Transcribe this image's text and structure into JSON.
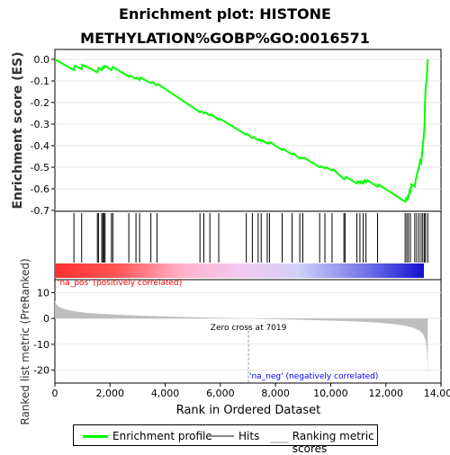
{
  "title": "Enrichment plot: HISTONE METHYLATION%GOBP%GO:0016571",
  "colors": {
    "enrichment": "#00ff00",
    "hits": "#000000",
    "ranking": "#bebebe",
    "pos_label": "#ff0000",
    "neg_label": "#0000ff"
  },
  "chart_data": [
    {
      "type": "line",
      "panel": "enrichment-score",
      "ylabel": "Enrichment score (ES)",
      "xlim": [
        0,
        14000
      ],
      "ylim": [
        -0.7,
        0.0
      ],
      "yticks": [
        0.0,
        -0.1,
        -0.2,
        -0.3,
        -0.4,
        -0.5,
        -0.6,
        -0.7
      ],
      "ytick_labels": [
        "0.0",
        "-0.1",
        "-0.2",
        "-0.3",
        "-0.4",
        "-0.5",
        "-0.6",
        "-0.7"
      ],
      "series": [
        {
          "name": "Enrichment profile",
          "x": [
            0,
            690,
            720,
            970,
            1000,
            1540,
            1580,
            1700,
            1740,
            1780,
            1820,
            2050,
            2100,
            2680,
            2720,
            2940,
            2980,
            3070,
            3110,
            3480,
            3520,
            3700,
            3740,
            5260,
            5300,
            5400,
            5440,
            5620,
            5660,
            5940,
            5980,
            6940,
            6980,
            7160,
            7200,
            7370,
            7410,
            7480,
            7520,
            7700,
            7740,
            7780,
            7820,
            8240,
            8280,
            8600,
            8640,
            8880,
            8920,
            8990,
            9030,
            9600,
            9640,
            9790,
            9830,
            10050,
            10090,
            10480,
            10510,
            10520,
            10560,
            10950,
            10990,
            11060,
            11100,
            11180,
            11220,
            11280,
            11320,
            11700,
            11740,
            12700,
            12730,
            12760,
            12800,
            12820,
            12860,
            12890,
            12920,
            13050,
            13080,
            13120,
            13160,
            13200,
            13240,
            13280,
            13310,
            13340,
            13370,
            13400,
            13420,
            13440,
            13480,
            13520
          ],
          "y": [
            0.0,
            -0.05,
            -0.03,
            -0.045,
            -0.025,
            -0.06,
            -0.04,
            -0.05,
            -0.035,
            -0.04,
            -0.03,
            -0.05,
            -0.035,
            -0.08,
            -0.075,
            -0.09,
            -0.085,
            -0.095,
            -0.085,
            -0.11,
            -0.105,
            -0.12,
            -0.115,
            -0.245,
            -0.24,
            -0.25,
            -0.245,
            -0.26,
            -0.255,
            -0.28,
            -0.275,
            -0.35,
            -0.345,
            -0.365,
            -0.36,
            -0.375,
            -0.37,
            -0.38,
            -0.375,
            -0.39,
            -0.385,
            -0.39,
            -0.385,
            -0.42,
            -0.415,
            -0.44,
            -0.435,
            -0.46,
            -0.455,
            -0.46,
            -0.455,
            -0.5,
            -0.495,
            -0.505,
            -0.5,
            -0.515,
            -0.51,
            -0.555,
            -0.555,
            -0.55,
            -0.545,
            -0.575,
            -0.565,
            -0.575,
            -0.565,
            -0.575,
            -0.56,
            -0.57,
            -0.56,
            -0.59,
            -0.58,
            -0.66,
            -0.645,
            -0.65,
            -0.635,
            -0.64,
            -0.61,
            -0.62,
            -0.58,
            -0.59,
            -0.56,
            -0.54,
            -0.515,
            -0.5,
            -0.47,
            -0.48,
            -0.44,
            -0.4,
            -0.36,
            -0.32,
            -0.22,
            -0.14,
            -0.09,
            0.0
          ]
        }
      ]
    },
    {
      "type": "scatter",
      "panel": "hits",
      "name": "Hits",
      "xlim": [
        0,
        14000
      ],
      "x": [
        690,
        970,
        1540,
        1580,
        1700,
        1740,
        1780,
        1820,
        2050,
        2100,
        2680,
        2940,
        3070,
        3480,
        3700,
        5260,
        5400,
        5620,
        5940,
        6940,
        7160,
        7370,
        7480,
        7700,
        7780,
        8240,
        8600,
        8880,
        8990,
        9600,
        9790,
        10050,
        10480,
        10520,
        10950,
        11060,
        11180,
        11280,
        11700,
        12700,
        12760,
        12820,
        12890,
        13050,
        13120,
        13200,
        13280,
        13340,
        13400,
        13440,
        13520
      ]
    },
    {
      "type": "area",
      "panel": "ranked-list-metric",
      "name": "Ranking metric scores",
      "xlabel": "Rank in Ordered Dataset",
      "ylabel": "Ranked list metric (PreRanked)",
      "xlim": [
        0,
        14000
      ],
      "ylim": [
        -25,
        15
      ],
      "yticks": [
        10,
        0,
        -10,
        -20
      ],
      "xticks": [
        0,
        2000,
        4000,
        6000,
        8000,
        10000,
        12000,
        14000
      ],
      "xtick_labels": [
        "0",
        "2,000",
        "4,000",
        "6,000",
        "8,000",
        "10,000",
        "12,000",
        "14,000"
      ],
      "x": [
        0,
        50,
        150,
        300,
        500,
        800,
        1200,
        1800,
        2500,
        3500,
        4500,
        5500,
        6500,
        7019,
        7500,
        8500,
        9500,
        10500,
        11200,
        11800,
        12300,
        12700,
        13000,
        13200,
        13350,
        13450,
        13500,
        13520
      ],
      "y": [
        7.0,
        5.5,
        4.5,
        3.8,
        3.2,
        2.6,
        2.1,
        1.7,
        1.3,
        0.9,
        0.6,
        0.35,
        0.12,
        0.0,
        -0.15,
        -0.4,
        -0.7,
        -1.0,
        -1.3,
        -1.7,
        -2.2,
        -2.8,
        -3.6,
        -4.6,
        -6.0,
        -8.5,
        -14.0,
        -23.0
      ],
      "zero_cross_label": "Zero cross at 7019",
      "pos_label": "'na_pos' (positively correlated)",
      "neg_label": "'na_neg' (negatively correlated)"
    }
  ],
  "legend": {
    "items": [
      {
        "label": "Enrichment profile"
      },
      {
        "label": "Hits"
      },
      {
        "label": "Ranking metric scores"
      }
    ]
  }
}
